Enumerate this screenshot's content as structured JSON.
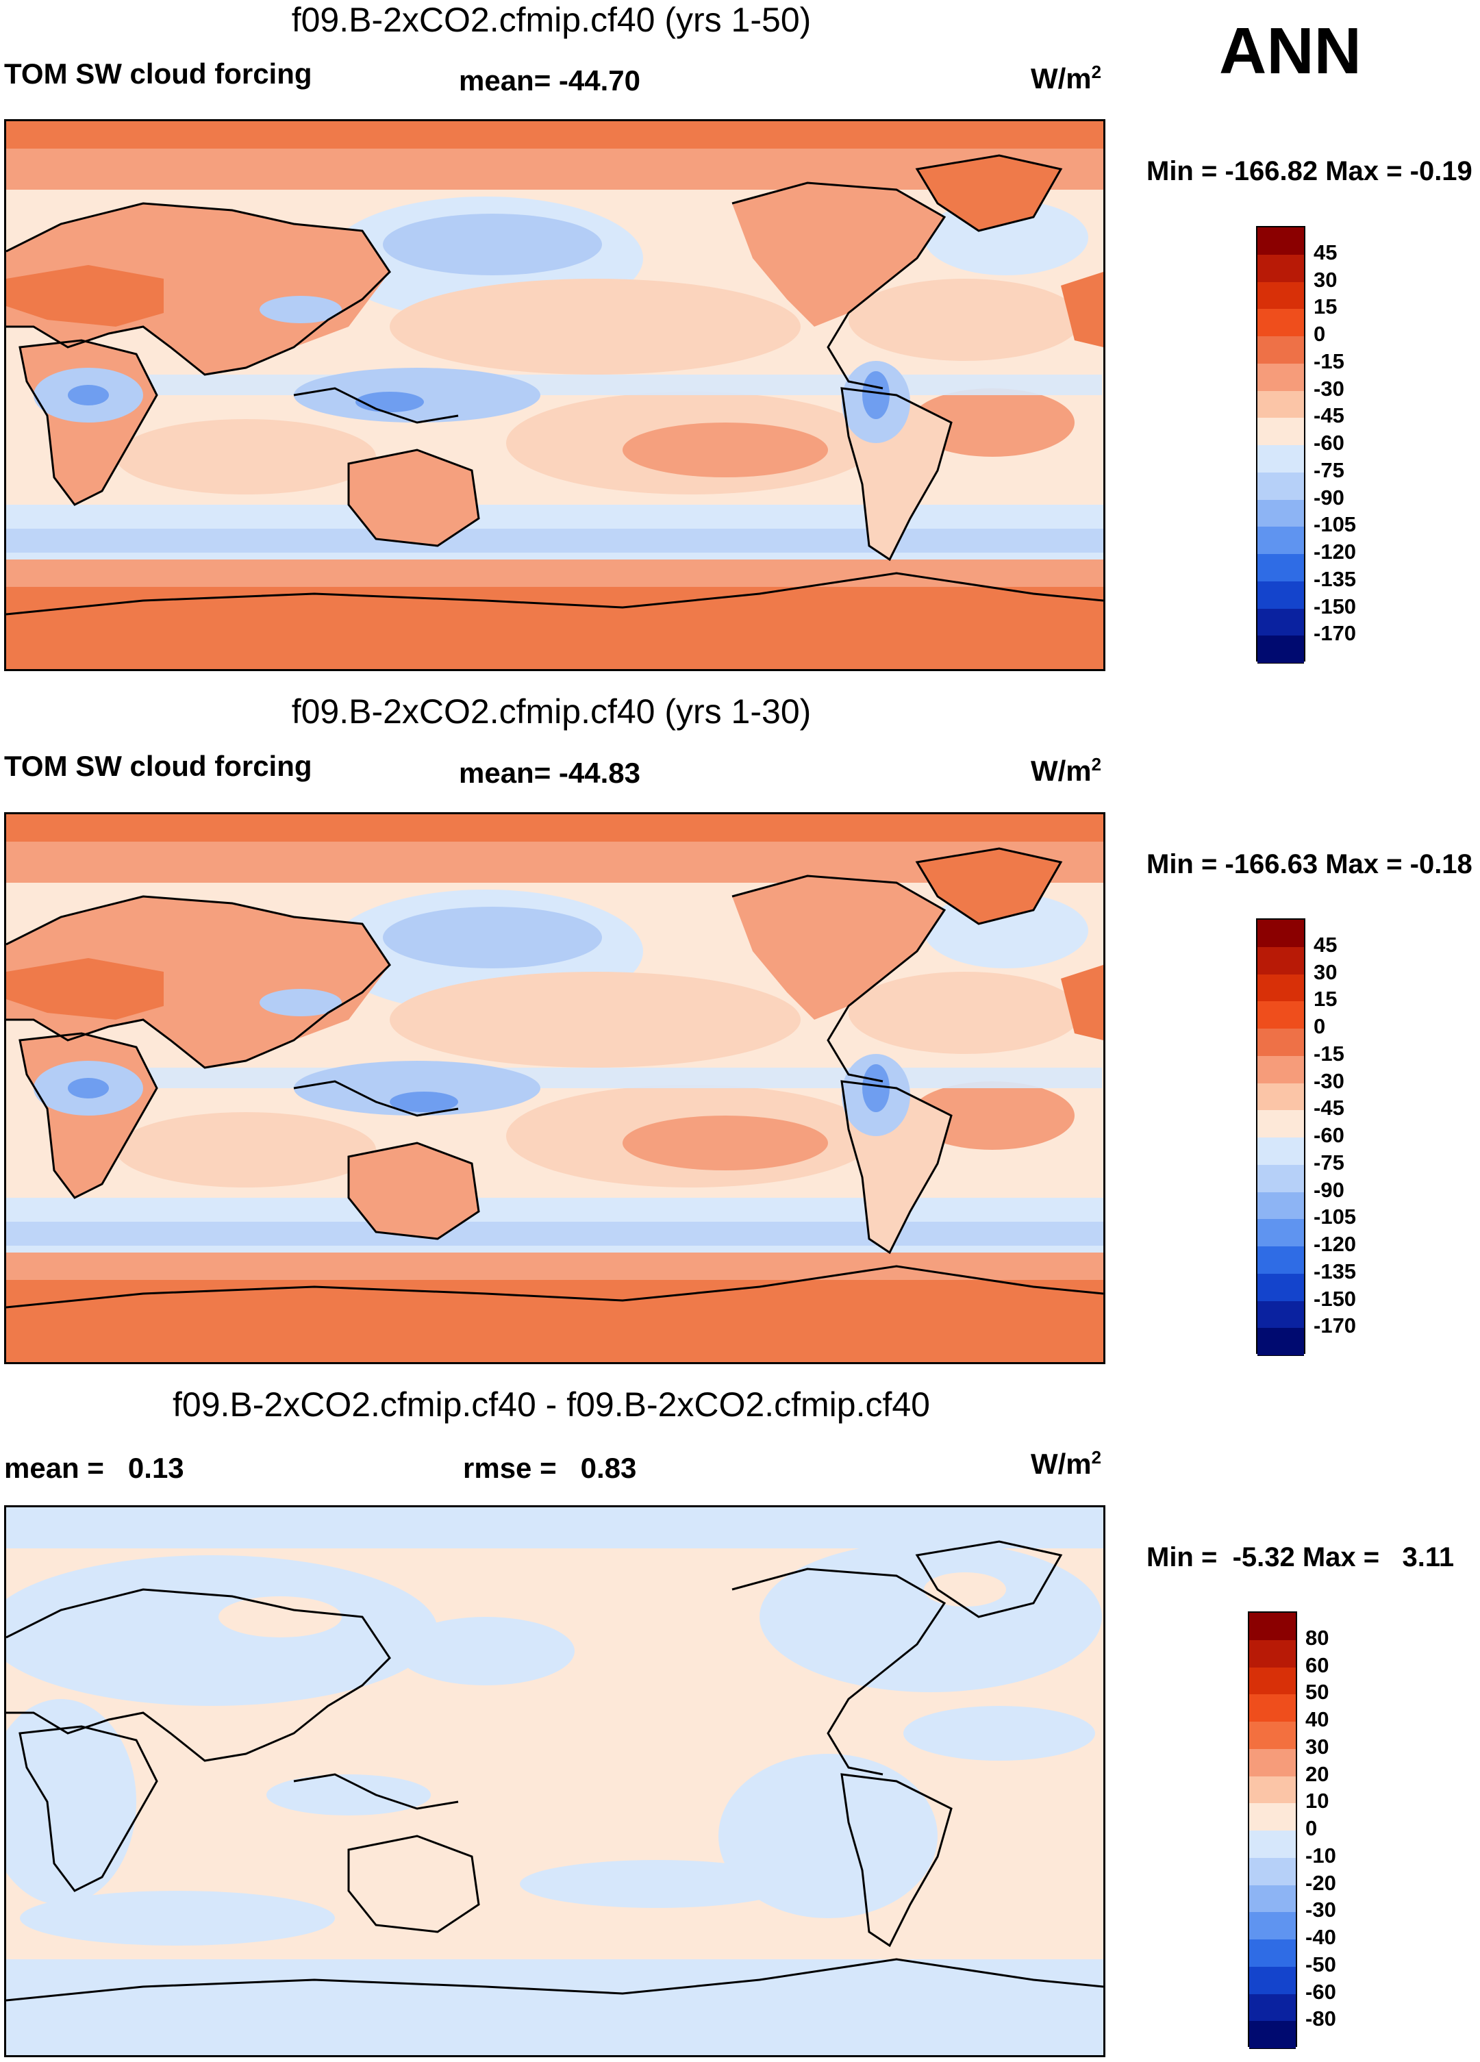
{
  "season": "ANN",
  "panels": [
    {
      "title": "f09.B-2xCO2.cfmip.cf40 (yrs 1-50)",
      "variable": "TOM SW cloud forcing",
      "stat1": "mean= -44.70",
      "stat2": "",
      "units_base": "W/m",
      "units_exp": "2",
      "minmax": "Min = -166.82 Max =  -0.19",
      "colorbar": {
        "labels": [
          "45",
          "30",
          "15",
          "0",
          "-15",
          "-30",
          "-45",
          "-60",
          "-75",
          "-90",
          "-105",
          "-120",
          "-135",
          "-150",
          "-170"
        ],
        "colors": [
          "#8b0000",
          "#b81a06",
          "#d83008",
          "#ef4e1c",
          "#ee7147",
          "#f69c7a",
          "#fbc5a7",
          "#fde8d8",
          "#d6e7fb",
          "#b6d0f8",
          "#8db4f4",
          "#5f94f0",
          "#2f6ce5",
          "#1444cc",
          "#0a22a0",
          "#000a70"
        ]
      }
    },
    {
      "title": "f09.B-2xCO2.cfmip.cf40 (yrs 1-30)",
      "variable": "TOM SW cloud forcing",
      "stat1": "mean= -44.83",
      "stat2": "",
      "units_base": "W/m",
      "units_exp": "2",
      "minmax": "Min = -166.63 Max =  -0.18",
      "colorbar": {
        "labels": [
          "45",
          "30",
          "15",
          "0",
          "-15",
          "-30",
          "-45",
          "-60",
          "-75",
          "-90",
          "-105",
          "-120",
          "-135",
          "-150",
          "-170"
        ],
        "colors": [
          "#8b0000",
          "#b81a06",
          "#d83008",
          "#ef4e1c",
          "#ee7147",
          "#f69c7a",
          "#fbc5a7",
          "#fde8d8",
          "#d6e7fb",
          "#b6d0f8",
          "#8db4f4",
          "#5f94f0",
          "#2f6ce5",
          "#1444cc",
          "#0a22a0",
          "#000a70"
        ]
      }
    },
    {
      "title": "f09.B-2xCO2.cfmip.cf40 - f09.B-2xCO2.cfmip.cf40",
      "variable": "",
      "stat1": "mean =   0.13",
      "stat2": "rmse =   0.83",
      "units_base": "W/m",
      "units_exp": "2",
      "minmax": "Min =  -5.32 Max =   3.11",
      "colorbar": {
        "labels": [
          "80",
          "60",
          "50",
          "40",
          "30",
          "20",
          "10",
          "0",
          "-10",
          "-20",
          "-30",
          "-40",
          "-50",
          "-60",
          "-80"
        ],
        "colors": [
          "#8b0000",
          "#b81a06",
          "#d83008",
          "#ef4e1c",
          "#f3703f",
          "#f69c7a",
          "#fbc5a7",
          "#fde8d8",
          "#d6e7fb",
          "#b6d0f8",
          "#8db4f4",
          "#5f94f0",
          "#2f6ce5",
          "#1444cc",
          "#0a22a0",
          "#000a70"
        ]
      }
    }
  ],
  "map_colors": {
    "polar": "#ef7a4a",
    "warm": "#f5a07e",
    "light": "#fbd4bd",
    "pale": "#fde8d8",
    "cool": "#d8e8fb",
    "blue": "#b3cdf6",
    "deep": "#6f9ef0",
    "diff_warm": "#fde8d8",
    "diff_cool": "#d6e7fb"
  }
}
